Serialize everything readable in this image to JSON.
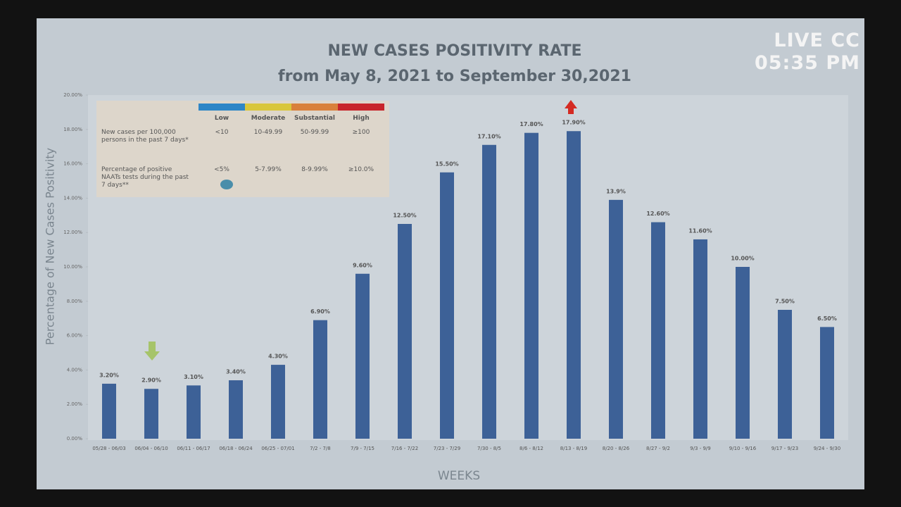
{
  "chart_data": {
    "type": "bar",
    "title": "NEW CASES POSITIVITY RATE",
    "subtitle": "from May 8, 2021 to September 30,2021",
    "y_label": "Percentage of New Cases Positivity",
    "x_label": "WEEKS",
    "categories": [
      "05/28 - 06/03",
      "06/04 - 06/10",
      "06/11 - 06/17",
      "06/18 - 06/24",
      "06/25 - 07/01",
      "7/2 - 7/8",
      "7/9 - 7/15",
      "7/16 - 7/22",
      "7/23 - 7/29",
      "7/30 - 8/5",
      "8/6 - 8/12",
      "8/13 - 8/19",
      "8/20 - 8/26",
      "8/27 - 9/2",
      "9/3 - 9/9",
      "9/10 - 9/16",
      "9/17 - 9/23",
      "9/24 - 9/30"
    ],
    "values": [
      3.2,
      2.9,
      3.1,
      3.4,
      4.3,
      6.9,
      9.6,
      12.5,
      15.5,
      17.1,
      17.8,
      17.9,
      13.9,
      12.6,
      11.6,
      10.0,
      7.5,
      6.5
    ],
    "value_labels": [
      "3.20%",
      "2.90%",
      "3.10%",
      "3.40%",
      "4.30%",
      "6.90%",
      "9.60%",
      "12.50%",
      "15.50%",
      "17.10%",
      "17.80%",
      "17.90%",
      "13.9%",
      "12.60%",
      "11.60%",
      "10.00%",
      "7.50%",
      "6.50%"
    ],
    "color": "#3d6197",
    "ylim": [
      0,
      20
    ],
    "yticks": [
      {
        "value": 0,
        "label": "0.00%"
      },
      {
        "value": 2,
        "label": "2.00%"
      },
      {
        "value": 4,
        "label": "4.00%"
      },
      {
        "value": 6,
        "label": "6.00%"
      },
      {
        "value": 8,
        "label": "8.00%"
      },
      {
        "value": 10,
        "label": "10.00%"
      },
      {
        "value": 12,
        "label": "12.00%"
      },
      {
        "value": 14,
        "label": "14.00%"
      },
      {
        "value": 16,
        "label": "16.00%"
      },
      {
        "value": 18,
        "label": "18.00%"
      },
      {
        "value": 20,
        "label": "20.00%"
      }
    ]
  },
  "level_table": {
    "levels": [
      {
        "name": "Low",
        "color": "#2f86c6"
      },
      {
        "name": "Moderate",
        "color": "#d9c63a"
      },
      {
        "name": "Substantial",
        "color": "#d9803a"
      },
      {
        "name": "High",
        "color": "#c8252a"
      }
    ],
    "rows": [
      {
        "label": "New cases per 100,000 persons in the past 7 days*",
        "cells": [
          "<10",
          "10-49.99",
          "50-99.99",
          "≥100"
        ]
      },
      {
        "label": "Percentage of positive NAATs tests during the past 7 days**",
        "cells": [
          "<5%",
          "5-7.99%",
          "8-9.99%",
          "≥10.0%"
        ]
      }
    ]
  },
  "overlay": {
    "live": "LIVE CC",
    "time": "05:35 PM"
  }
}
